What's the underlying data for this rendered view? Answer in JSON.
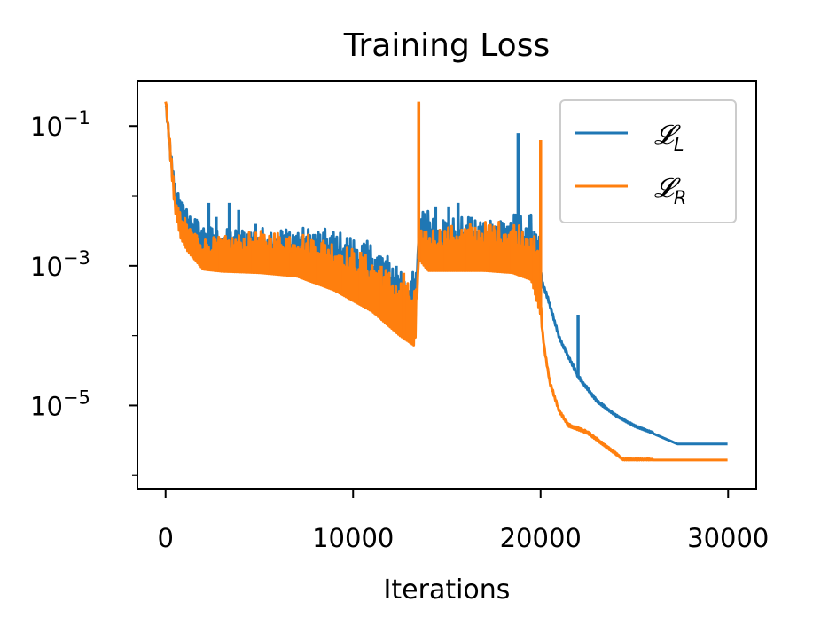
{
  "chart_data": {
    "type": "line",
    "title": "Training Loss",
    "xlabel": "Iterations",
    "ylabel": "",
    "yscale": "log",
    "xlim": [
      -1500,
      31500
    ],
    "ylim_log10": [
      -6.2,
      -0.35
    ],
    "xticks": [
      0,
      10000,
      20000,
      30000
    ],
    "xtick_labels": [
      "0",
      "10000",
      "20000",
      "30000"
    ],
    "yticks": [
      {
        "value_log10": -1,
        "base": "10",
        "exp": "−1"
      },
      {
        "value_log10": -3,
        "base": "10",
        "exp": "−3"
      },
      {
        "value_log10": -5,
        "base": "10",
        "exp": "−5"
      }
    ],
    "legend": {
      "position": "top-right",
      "entries": [
        {
          "symbol": "𝓛",
          "sub": "L",
          "color": "#1f77b4"
        },
        {
          "symbol": "𝓛",
          "sub": "R",
          "color": "#ff7f0e"
        }
      ]
    },
    "series": [
      {
        "name": "L_L",
        "color": "#1f77b4",
        "base": [
          [
            0,
            -0.7
          ],
          [
            150,
            -1.1
          ],
          [
            300,
            -1.6
          ],
          [
            500,
            -2.05
          ],
          [
            800,
            -2.4
          ],
          [
            1200,
            -2.6
          ],
          [
            2000,
            -2.85
          ],
          [
            3000,
            -2.95
          ],
          [
            5000,
            -3.0
          ],
          [
            7000,
            -3.05
          ],
          [
            9000,
            -3.15
          ],
          [
            11000,
            -3.4
          ],
          [
            12500,
            -3.75
          ],
          [
            13300,
            -3.9
          ],
          [
            13500,
            -2.6
          ],
          [
            14000,
            -2.8
          ],
          [
            15000,
            -2.95
          ],
          [
            17000,
            -3.0
          ],
          [
            18500,
            -3.0
          ],
          [
            19500,
            -3.05
          ],
          [
            20000,
            -3.2
          ],
          [
            20400,
            -3.5
          ],
          [
            21000,
            -4.05
          ],
          [
            22000,
            -4.6
          ],
          [
            23000,
            -4.95
          ],
          [
            24000,
            -5.15
          ],
          [
            25000,
            -5.3
          ],
          [
            26000,
            -5.4
          ],
          [
            27300,
            -5.55
          ],
          [
            30000,
            -5.55
          ]
        ],
        "band": [
          [
            0,
            0.1
          ],
          [
            1000,
            0.4
          ],
          [
            5000,
            0.55
          ],
          [
            10000,
            0.7
          ],
          [
            13300,
            0.8
          ],
          [
            13450,
            0.05
          ],
          [
            13700,
            0.6
          ],
          [
            19900,
            0.8
          ],
          [
            20050,
            0.05
          ],
          [
            30000,
            0.0
          ]
        ],
        "spikes": [
          [
            1000,
            -2.2
          ],
          [
            2300,
            -2.1
          ],
          [
            2700,
            -2.3
          ],
          [
            3400,
            -2.1
          ],
          [
            3900,
            -2.2
          ],
          [
            4800,
            -2.4
          ],
          [
            6200,
            -2.5
          ],
          [
            7400,
            -2.6
          ],
          [
            8500,
            -2.6
          ],
          [
            9800,
            -2.7
          ],
          [
            11200,
            -2.9
          ],
          [
            12300,
            -3.0
          ],
          [
            13500,
            -0.67
          ],
          [
            14400,
            -2.15
          ],
          [
            15100,
            -2.15
          ],
          [
            15600,
            -2.1
          ],
          [
            16300,
            -2.3
          ],
          [
            17400,
            -2.4
          ],
          [
            18800,
            -1.1
          ],
          [
            19500,
            -2.5
          ],
          [
            22000,
            -3.7
          ]
        ]
      },
      {
        "name": "L_R",
        "color": "#ff7f0e",
        "base": [
          [
            0,
            -0.65
          ],
          [
            150,
            -1.1
          ],
          [
            300,
            -1.6
          ],
          [
            500,
            -2.2
          ],
          [
            800,
            -2.6
          ],
          [
            1200,
            -2.8
          ],
          [
            2000,
            -3.05
          ],
          [
            3000,
            -3.08
          ],
          [
            5000,
            -3.1
          ],
          [
            7000,
            -3.15
          ],
          [
            9000,
            -3.35
          ],
          [
            11000,
            -3.65
          ],
          [
            12500,
            -4.0
          ],
          [
            13300,
            -4.15
          ],
          [
            13500,
            -2.9
          ],
          [
            14000,
            -3.07
          ],
          [
            15000,
            -3.07
          ],
          [
            17000,
            -3.07
          ],
          [
            18500,
            -3.1
          ],
          [
            19500,
            -3.2
          ],
          [
            20000,
            -3.7
          ],
          [
            20200,
            -4.2
          ],
          [
            20500,
            -4.7
          ],
          [
            21000,
            -5.1
          ],
          [
            21500,
            -5.3
          ],
          [
            22500,
            -5.4
          ],
          [
            23500,
            -5.6
          ],
          [
            24400,
            -5.78
          ],
          [
            30000,
            -5.78
          ]
        ],
        "band": [
          [
            0,
            0.1
          ],
          [
            1000,
            0.4
          ],
          [
            5000,
            0.6
          ],
          [
            10000,
            0.75
          ],
          [
            13300,
            0.85
          ],
          [
            13450,
            0.05
          ],
          [
            13700,
            0.6
          ],
          [
            19900,
            0.8
          ],
          [
            20050,
            0.05
          ],
          [
            30000,
            0.0
          ]
        ],
        "spikes": [
          [
            1700,
            -2.6
          ],
          [
            2900,
            -2.7
          ],
          [
            4500,
            -2.6
          ],
          [
            5600,
            -2.6
          ],
          [
            6700,
            -2.8
          ],
          [
            8100,
            -2.8
          ],
          [
            9300,
            -2.9
          ],
          [
            10400,
            -2.8
          ],
          [
            11500,
            -3.0
          ],
          [
            12700,
            -3.1
          ],
          [
            13500,
            -0.65
          ],
          [
            14900,
            -2.5
          ],
          [
            16100,
            -2.5
          ],
          [
            17200,
            -2.7
          ],
          [
            18300,
            -2.6
          ],
          [
            19500,
            -2.6
          ],
          [
            20000,
            -1.2
          ]
        ]
      }
    ]
  }
}
